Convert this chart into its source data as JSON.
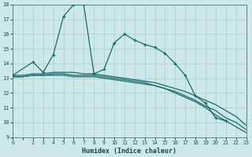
{
  "xlabel": "Humidex (Indice chaleur)",
  "bg_color": "#cce8e8",
  "grid_color": "#aacccc",
  "line_color": "#1a6b6b",
  "xlim": [
    0,
    23
  ],
  "ylim": [
    9,
    18
  ],
  "xticks": [
    0,
    1,
    2,
    3,
    4,
    5,
    6,
    7,
    8,
    9,
    10,
    11,
    12,
    13,
    14,
    15,
    16,
    17,
    18,
    19,
    20,
    21,
    22,
    23
  ],
  "xticklabels": [
    "0",
    "",
    "2",
    "3",
    "4",
    "5",
    "6",
    "7",
    "8",
    "9",
    "10",
    "11",
    "12",
    "13",
    "14",
    "15",
    "16",
    "17",
    "18",
    "19",
    "20",
    "21",
    "22",
    "23"
  ],
  "yticks": [
    9,
    10,
    11,
    12,
    13,
    14,
    15,
    16,
    17,
    18
  ],
  "line1_x": [
    0,
    2,
    3,
    4,
    5,
    6,
    7,
    8,
    9,
    10,
    11,
    12,
    13,
    14,
    15,
    16,
    17,
    18,
    19,
    20,
    21
  ],
  "line1_y": [
    13.2,
    14.1,
    13.4,
    14.6,
    17.2,
    18.0,
    18.0,
    13.3,
    13.6,
    15.4,
    16.0,
    15.6,
    15.3,
    15.1,
    14.7,
    14.0,
    13.2,
    11.8,
    11.3,
    10.3,
    10.1
  ],
  "line2_x": [
    0,
    1,
    2,
    3,
    4,
    5,
    6,
    7,
    8,
    9,
    10,
    11,
    12,
    13,
    14,
    15,
    16,
    17,
    18,
    19,
    20,
    21,
    22,
    23
  ],
  "line2_y": [
    13.1,
    13.1,
    13.2,
    13.2,
    13.2,
    13.2,
    13.1,
    13.1,
    13.1,
    13.0,
    12.9,
    12.8,
    12.7,
    12.6,
    12.5,
    12.3,
    12.1,
    11.8,
    11.5,
    11.1,
    10.8,
    10.3,
    10.0,
    9.5
  ],
  "line3_x": [
    0,
    1,
    2,
    3,
    4,
    5,
    6,
    7,
    8,
    9,
    10,
    11,
    12,
    13,
    14,
    15,
    16,
    17,
    18,
    19,
    20,
    21,
    22,
    23
  ],
  "line3_y": [
    13.1,
    13.1,
    13.2,
    13.2,
    13.3,
    13.3,
    13.2,
    13.2,
    13.2,
    13.1,
    13.0,
    12.9,
    12.8,
    12.7,
    12.5,
    12.3,
    12.0,
    11.7,
    11.4,
    11.0,
    10.5,
    10.1,
    9.7,
    9.3
  ],
  "line4_x": [
    0,
    1,
    2,
    3,
    4,
    5,
    6,
    7,
    8,
    9,
    10,
    11,
    12,
    13,
    14,
    15,
    16,
    17,
    18,
    19,
    20,
    21,
    22,
    23
  ],
  "line4_y": [
    13.2,
    13.2,
    13.3,
    13.3,
    13.4,
    13.4,
    13.4,
    13.3,
    13.3,
    13.2,
    13.1,
    13.0,
    12.9,
    12.8,
    12.7,
    12.5,
    12.3,
    12.1,
    11.8,
    11.5,
    11.2,
    10.8,
    10.4,
    9.8
  ]
}
